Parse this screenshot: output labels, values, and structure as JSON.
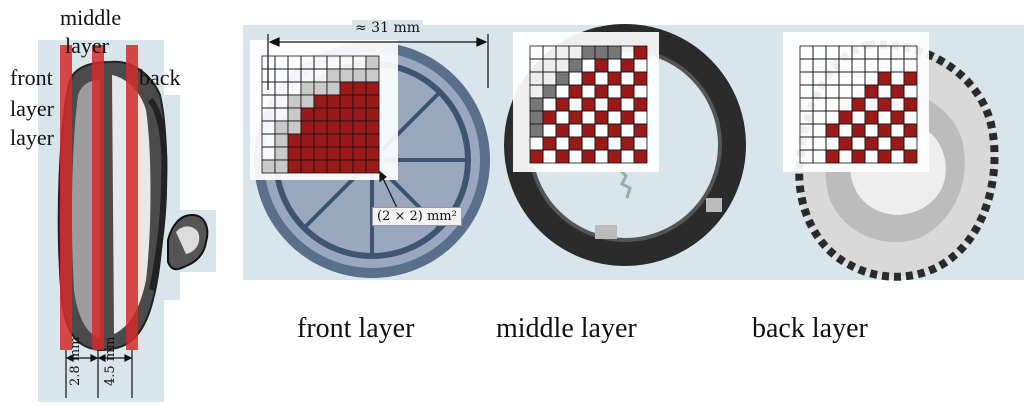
{
  "side_view": {
    "label_middle_line1": "middle",
    "label_middle_line2": "layer",
    "label_front": "front",
    "label_layer_1": "layer",
    "label_layer_2": "layer",
    "label_back": "back",
    "thickness_1_value": "2.8",
    "thickness_1_unit": "mm",
    "thickness_2_value": "4.5",
    "thickness_2_unit": "mm"
  },
  "top_view": {
    "diameter_label": "≈ 31 mm",
    "cell_size_label": "(2 × 2) mm²"
  },
  "captions": {
    "front": "front layer",
    "middle": "middle layer",
    "back": "back layer"
  },
  "colors": {
    "strip_red": "#d42a2a",
    "cell_red": "#9a1a1a",
    "panel_bg": "#d8e6ec"
  }
}
